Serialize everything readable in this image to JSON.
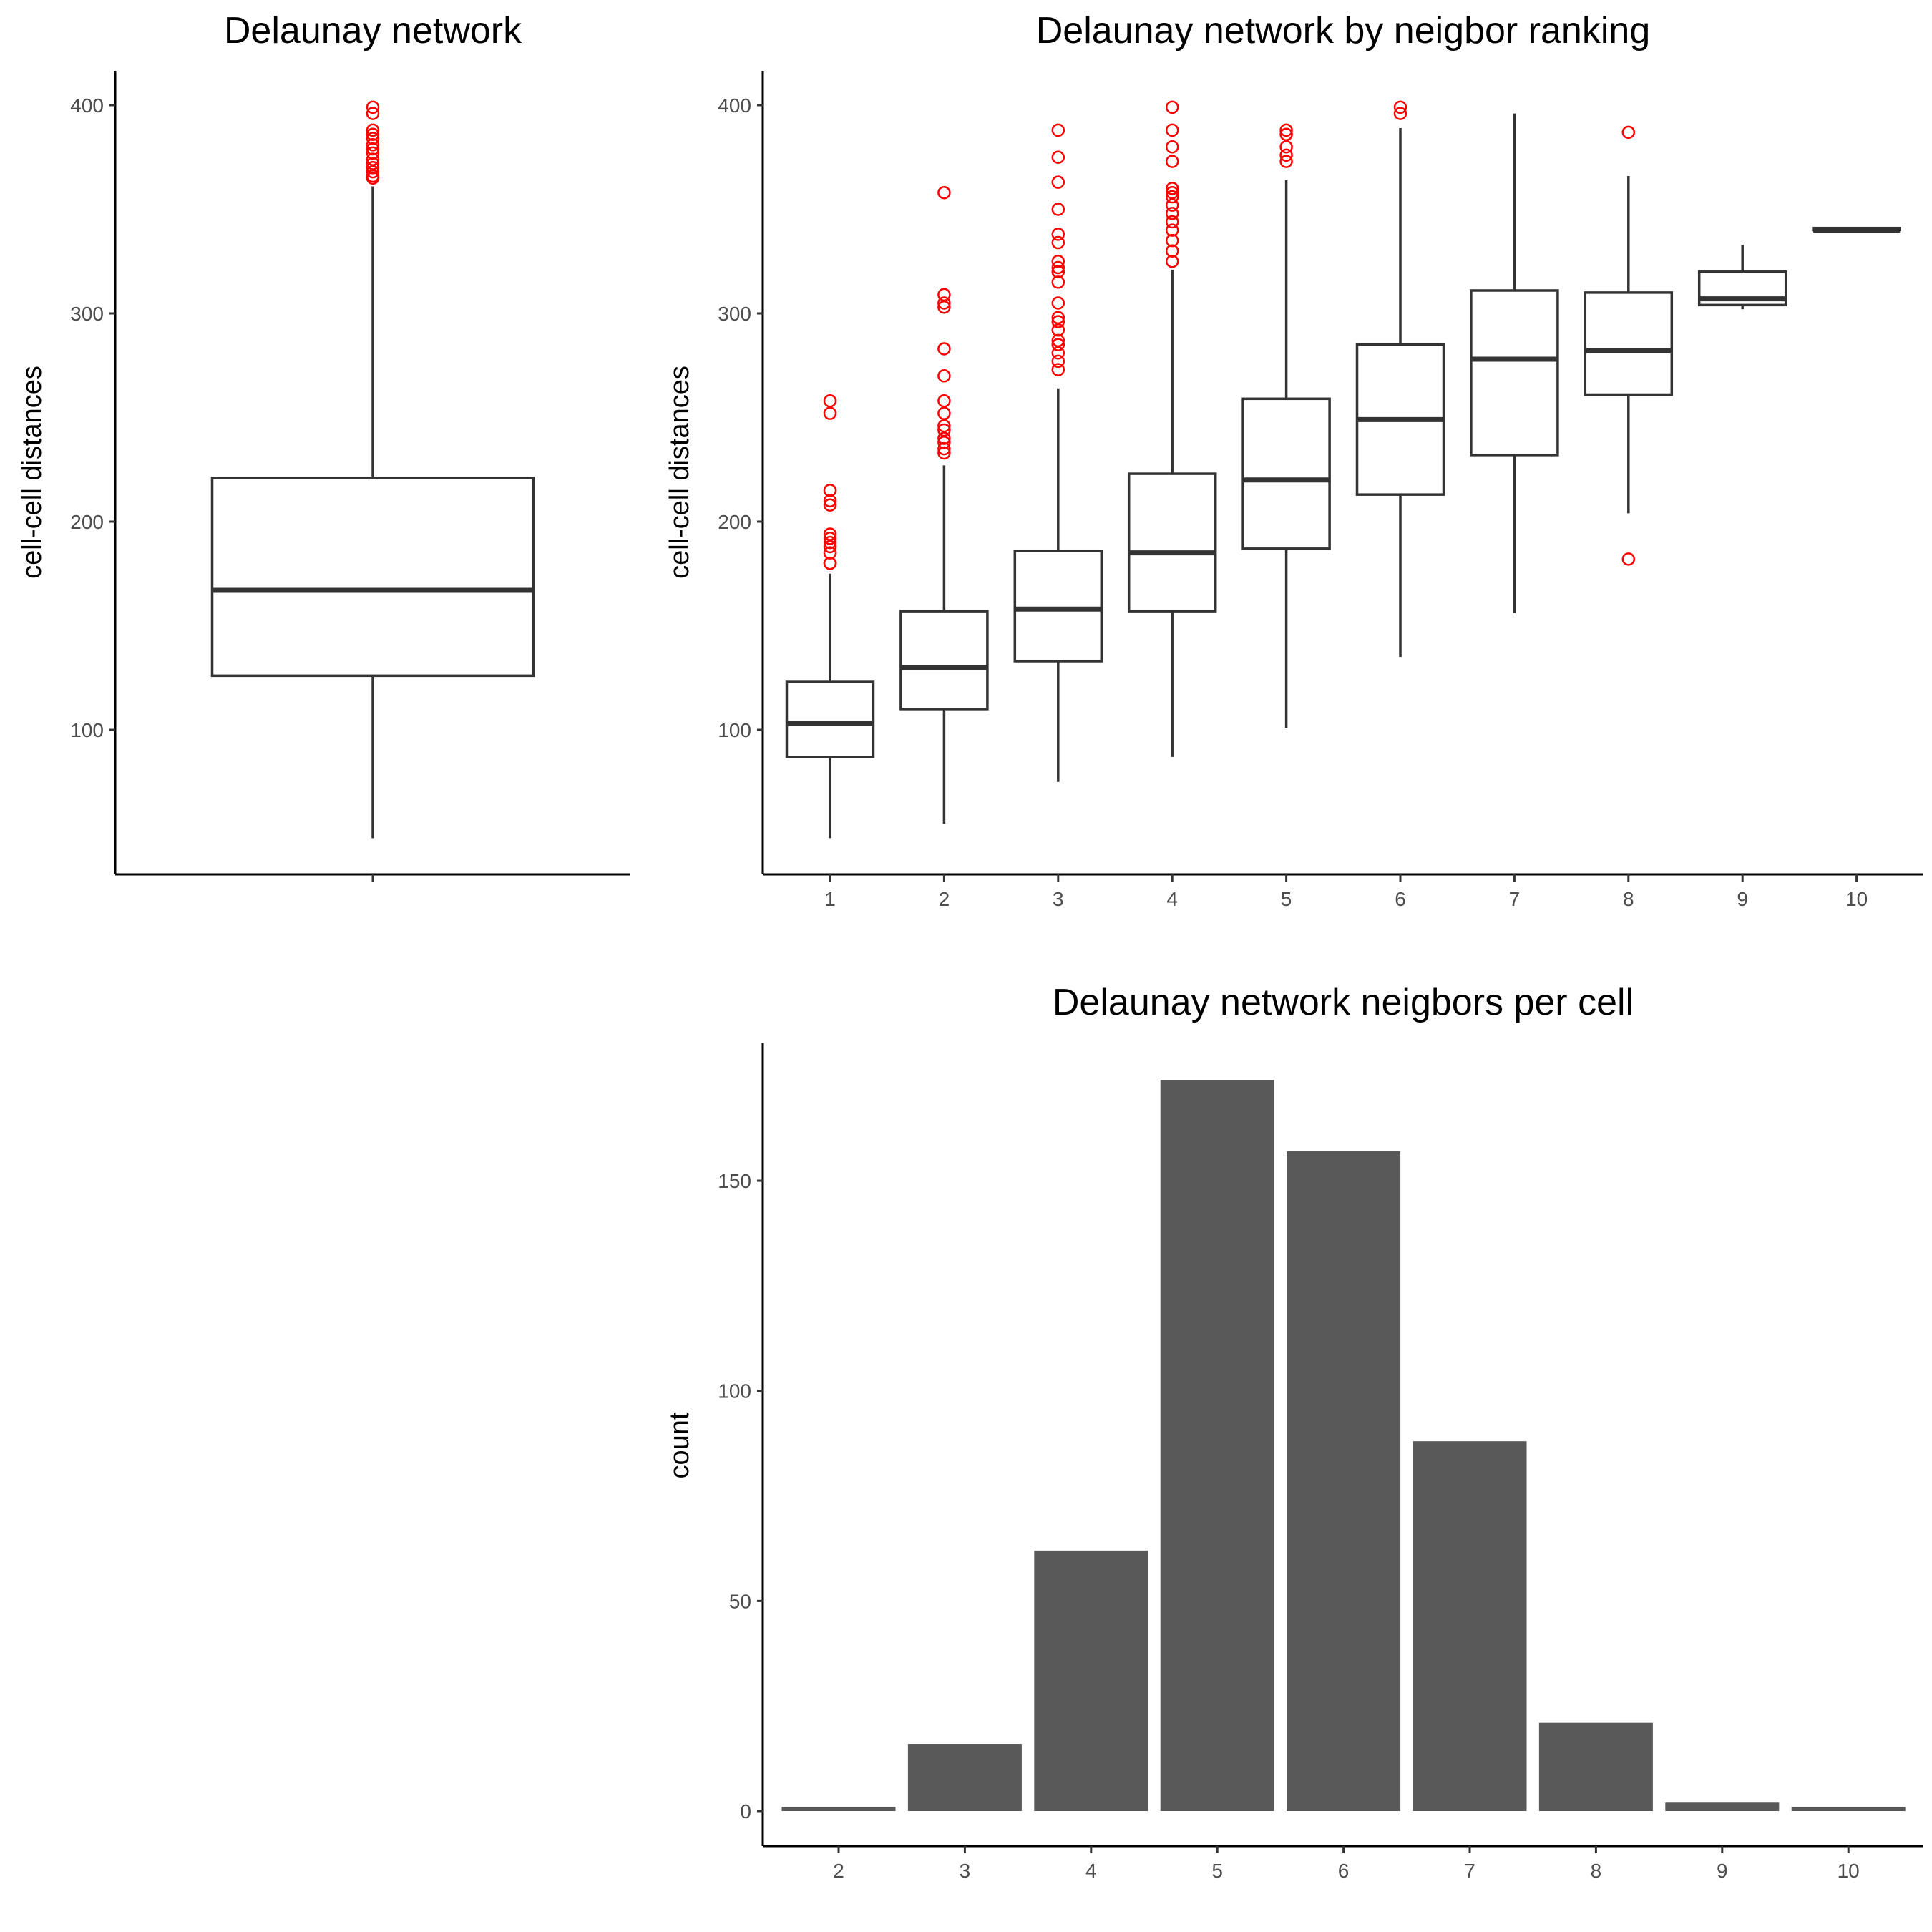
{
  "chart_data": [
    {
      "type": "boxplot",
      "title": "Delaunay network",
      "xlabel": "",
      "ylabel": "cell-cell distances",
      "yticks": [
        100,
        200,
        300,
        400
      ],
      "ylim": [
        35,
        415
      ],
      "boxes": [
        {
          "category": "",
          "low": 48,
          "q1": 126,
          "median": 167,
          "q3": 221,
          "high": 361,
          "outliers": [
            365,
            366,
            368,
            370,
            372,
            374,
            377,
            379,
            381,
            384,
            386,
            388,
            396,
            399
          ]
        }
      ],
      "outlier_color": "#ff0000"
    },
    {
      "type": "boxplot",
      "title": "Delaunay network by neigbor ranking",
      "xlabel": "",
      "ylabel": "cell-cell distances",
      "yticks": [
        100,
        200,
        300,
        400
      ],
      "ylim": [
        35,
        415
      ],
      "categories": [
        "1",
        "2",
        "3",
        "4",
        "5",
        "6",
        "7",
        "8",
        "9",
        "10"
      ],
      "boxes": [
        {
          "category": "1",
          "low": 48,
          "q1": 87,
          "median": 103,
          "q3": 123,
          "high": 175,
          "outliers": [
            180,
            180,
            185,
            188,
            190,
            192,
            194,
            208,
            210,
            215,
            252,
            258
          ]
        },
        {
          "category": "2",
          "low": 55,
          "q1": 110,
          "median": 130,
          "q3": 157,
          "high": 227,
          "outliers": [
            233,
            235,
            238,
            240,
            244,
            246,
            252,
            258,
            270,
            283,
            303,
            305,
            309,
            358
          ]
        },
        {
          "category": "3",
          "low": 75,
          "q1": 133,
          "median": 158,
          "q3": 186,
          "high": 264,
          "outliers": [
            273,
            277,
            281,
            285,
            287,
            292,
            296,
            298,
            305,
            315,
            320,
            322,
            325,
            334,
            338,
            350,
            363,
            375,
            388
          ]
        },
        {
          "category": "4",
          "low": 87,
          "q1": 157,
          "median": 185,
          "q3": 223,
          "high": 321,
          "outliers": [
            325,
            330,
            335,
            340,
            344,
            348,
            352,
            356,
            358,
            360,
            373,
            380,
            388,
            399
          ]
        },
        {
          "category": "5",
          "low": 101,
          "q1": 187,
          "median": 220,
          "q3": 259,
          "high": 364,
          "outliers": [
            373,
            376,
            380,
            386,
            388
          ]
        },
        {
          "category": "6",
          "low": 135,
          "q1": 213,
          "median": 249,
          "q3": 285,
          "high": 389,
          "outliers": [
            396,
            399
          ]
        },
        {
          "category": "7",
          "low": 156,
          "q1": 232,
          "median": 278,
          "q3": 311,
          "high": 396,
          "outliers": []
        },
        {
          "category": "8",
          "low": 204,
          "q1": 261,
          "median": 282,
          "q3": 310,
          "high": 366,
          "outliers": [
            182,
            387
          ]
        },
        {
          "category": "9",
          "low": 302,
          "q1": 304,
          "median": 307,
          "q3": 320,
          "high": 333,
          "outliers": []
        },
        {
          "category": "10",
          "low": 340,
          "q1": 340,
          "median": 340,
          "q3": 341,
          "high": 341,
          "outliers": []
        }
      ],
      "outlier_color": "#ff0000"
    },
    {
      "type": "bar",
      "title": "Delaunay network neigbors per cell",
      "xlabel": "",
      "ylabel": "count",
      "categories": [
        "2",
        "3",
        "4",
        "5",
        "6",
        "7",
        "8",
        "9",
        "10"
      ],
      "values": [
        1,
        16,
        62,
        174,
        157,
        88,
        21,
        2,
        1
      ],
      "yticks": [
        0,
        50,
        100,
        150
      ],
      "ylim": [
        -9,
        182
      ],
      "bar_color": "#595959"
    }
  ]
}
